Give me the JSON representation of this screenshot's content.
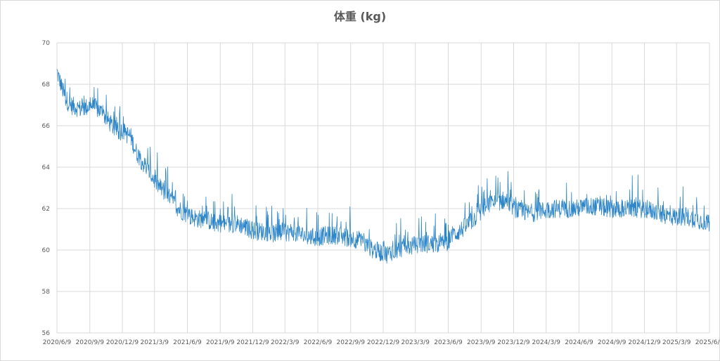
{
  "chart_data": {
    "type": "line",
    "title": "体重 (kg)",
    "xlabel": "",
    "ylabel": "",
    "ylim": [
      56,
      70
    ],
    "yticks": [
      56,
      58,
      60,
      62,
      64,
      66,
      68,
      70
    ],
    "xticks": [
      "2020/6/9",
      "2020/9/9",
      "2020/12/9",
      "2021/3/9",
      "2021/6/9",
      "2021/9/9",
      "2021/12/9",
      "2022/3/9",
      "2022/6/9",
      "2022/9/9",
      "2022/12/9",
      "2023/3/9",
      "2023/6/9",
      "2023/9/9",
      "2023/12/9",
      "2024/3/9",
      "2024/6/9",
      "2024/9/9",
      "2024/12/9",
      "2025/3/9",
      "2025/6/9"
    ],
    "grid": true,
    "legend": "none",
    "series": [
      {
        "color": "#2e86c8",
        "points": [
          [
            "2020-06-09",
            68.6
          ],
          [
            "2020-06-20",
            68.0
          ],
          [
            "2020-07-01",
            67.4
          ],
          [
            "2020-07-15",
            67.0
          ],
          [
            "2020-08-01",
            66.9
          ],
          [
            "2020-08-15",
            66.8
          ],
          [
            "2020-09-01",
            66.9
          ],
          [
            "2020-09-15",
            67.0
          ],
          [
            "2020-10-01",
            66.8
          ],
          [
            "2020-10-15",
            66.6
          ],
          [
            "2020-11-01",
            66.2
          ],
          [
            "2020-11-15",
            65.9
          ],
          [
            "2020-12-01",
            65.7
          ],
          [
            "2020-12-09",
            65.8
          ],
          [
            "2020-12-20",
            65.6
          ],
          [
            "2021-01-01",
            65.5
          ],
          [
            "2021-01-15",
            64.8
          ],
          [
            "2021-02-01",
            64.3
          ],
          [
            "2021-02-15",
            63.9
          ],
          [
            "2021-03-01",
            63.6
          ],
          [
            "2021-03-15",
            63.2
          ],
          [
            "2021-04-01",
            62.9
          ],
          [
            "2021-04-15",
            62.6
          ],
          [
            "2021-05-01",
            62.3
          ],
          [
            "2021-05-15",
            62.0
          ],
          [
            "2021-06-01",
            61.8
          ],
          [
            "2021-06-20",
            61.6
          ],
          [
            "2021-07-10",
            61.5
          ],
          [
            "2021-08-01",
            61.5
          ],
          [
            "2021-08-20",
            61.3
          ],
          [
            "2021-09-09",
            61.3
          ],
          [
            "2021-10-01",
            61.2
          ],
          [
            "2021-10-20",
            61.3
          ],
          [
            "2021-11-10",
            61.2
          ],
          [
            "2021-12-01",
            61.0
          ],
          [
            "2021-12-20",
            60.9
          ],
          [
            "2022-01-10",
            60.9
          ],
          [
            "2022-02-01",
            60.8
          ],
          [
            "2022-03-01",
            60.8
          ],
          [
            "2022-04-01",
            60.9
          ],
          [
            "2022-05-01",
            60.7
          ],
          [
            "2022-06-01",
            60.6
          ],
          [
            "2022-07-01",
            60.7
          ],
          [
            "2022-08-01",
            60.7
          ],
          [
            "2022-09-01",
            60.6
          ],
          [
            "2022-10-01",
            60.5
          ],
          [
            "2022-11-01",
            60.1
          ],
          [
            "2022-12-01",
            59.9
          ],
          [
            "2022-12-20",
            59.8
          ],
          [
            "2023-01-10",
            60.0
          ],
          [
            "2023-02-01",
            60.1
          ],
          [
            "2023-03-01",
            60.2
          ],
          [
            "2023-04-01",
            60.3
          ],
          [
            "2023-05-01",
            60.3
          ],
          [
            "2023-06-01",
            60.3
          ],
          [
            "2023-06-20",
            60.7
          ],
          [
            "2023-07-10",
            60.9
          ],
          [
            "2023-08-01",
            61.2
          ],
          [
            "2023-08-20",
            61.5
          ],
          [
            "2023-09-09",
            61.9
          ],
          [
            "2023-10-01",
            62.2
          ],
          [
            "2023-10-20",
            62.3
          ],
          [
            "2023-11-10",
            62.4
          ],
          [
            "2023-12-01",
            62.2
          ],
          [
            "2023-12-20",
            61.9
          ],
          [
            "2024-01-10",
            61.8
          ],
          [
            "2024-02-01",
            61.8
          ],
          [
            "2024-03-01",
            61.9
          ],
          [
            "2024-04-01",
            62.0
          ],
          [
            "2024-05-01",
            62.0
          ],
          [
            "2024-06-01",
            62.0
          ],
          [
            "2024-07-01",
            62.1
          ],
          [
            "2024-08-01",
            62.1
          ],
          [
            "2024-09-01",
            62.0
          ],
          [
            "2024-10-01",
            62.0
          ],
          [
            "2024-11-01",
            62.0
          ],
          [
            "2024-12-01",
            62.0
          ],
          [
            "2025-01-01",
            61.9
          ],
          [
            "2025-02-01",
            61.7
          ],
          [
            "2025-03-01",
            61.6
          ],
          [
            "2025-04-01",
            61.6
          ],
          [
            "2025-05-01",
            61.5
          ],
          [
            "2025-06-09",
            61.3
          ]
        ]
      }
    ]
  }
}
